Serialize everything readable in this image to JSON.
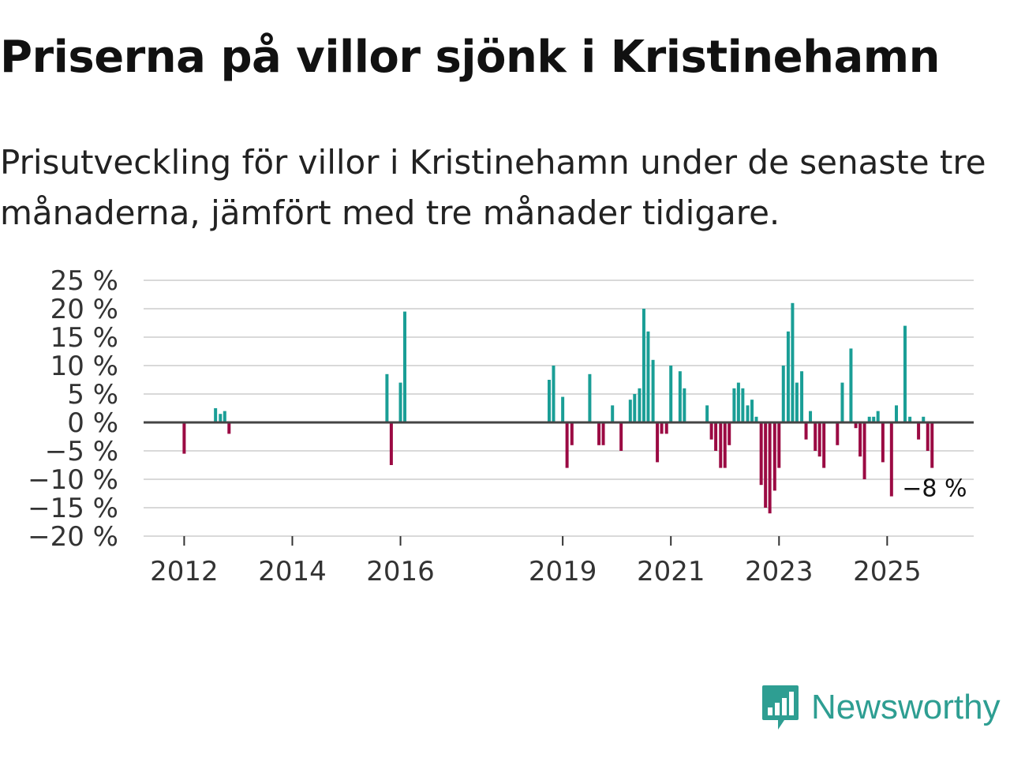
{
  "header": {
    "title": "Priserna på villor sjönk i Kristinehamn",
    "subtitle": "Prisutveckling för villor i Kristinehamn under de senaste tre månaderna, jämfört med tre månader tidigare."
  },
  "brand": {
    "name": "Newsworthy",
    "icon": "newsworthy-logo-icon",
    "color": "#2e9e92"
  },
  "colors": {
    "positive": "#1a9e96",
    "negative": "#9b0a43",
    "grid": "#d9d9d9",
    "zero": "#444444"
  },
  "chart_data": {
    "type": "bar",
    "title": "Priserna på villor sjönk i Kristinehamn",
    "xlabel": "",
    "ylabel": "",
    "ylim": [
      -20,
      25
    ],
    "xlim": [
      2011.25,
      2026.6
    ],
    "yticks": [
      25,
      20,
      15,
      10,
      5,
      0,
      -5,
      -10,
      -15,
      -20
    ],
    "ytick_labels": [
      "25 %",
      "20 %",
      "15 %",
      "10 %",
      "5 %",
      "0 %",
      "−5 %",
      "−10 %",
      "−15 %",
      "−20 %"
    ],
    "xticks": [
      2012,
      2014,
      2016,
      2019,
      2021,
      2023,
      2025
    ],
    "xtick_labels": [
      "2012",
      "2014",
      "2016",
      "2019",
      "2021",
      "2023",
      "2025"
    ],
    "grid": true,
    "annotation": {
      "text": "−8 %",
      "x": 2025.83,
      "y": -8
    },
    "points": [
      {
        "x": 2012.0,
        "y": -5.5
      },
      {
        "x": 2012.58,
        "y": 2.5
      },
      {
        "x": 2012.67,
        "y": 1.5
      },
      {
        "x": 2012.75,
        "y": 2.0
      },
      {
        "x": 2012.83,
        "y": -2.0
      },
      {
        "x": 2015.75,
        "y": 8.5
      },
      {
        "x": 2015.83,
        "y": -7.5
      },
      {
        "x": 2016.0,
        "y": 7.0
      },
      {
        "x": 2016.08,
        "y": 19.5
      },
      {
        "x": 2018.75,
        "y": 7.5
      },
      {
        "x": 2018.83,
        "y": 10.0
      },
      {
        "x": 2019.0,
        "y": 4.5
      },
      {
        "x": 2019.08,
        "y": -8.0
      },
      {
        "x": 2019.17,
        "y": -4.0
      },
      {
        "x": 2019.5,
        "y": 8.5
      },
      {
        "x": 2019.67,
        "y": -4.0
      },
      {
        "x": 2019.75,
        "y": -4.0
      },
      {
        "x": 2019.92,
        "y": 3.0
      },
      {
        "x": 2020.08,
        "y": -5.0
      },
      {
        "x": 2020.25,
        "y": 4.0
      },
      {
        "x": 2020.33,
        "y": 5.0
      },
      {
        "x": 2020.42,
        "y": 6.0
      },
      {
        "x": 2020.5,
        "y": 20.0
      },
      {
        "x": 2020.58,
        "y": 16.0
      },
      {
        "x": 2020.67,
        "y": 11.0
      },
      {
        "x": 2020.75,
        "y": -7.0
      },
      {
        "x": 2020.83,
        "y": -2.0
      },
      {
        "x": 2020.92,
        "y": -2.0
      },
      {
        "x": 2021.0,
        "y": 10.0
      },
      {
        "x": 2021.17,
        "y": 9.0
      },
      {
        "x": 2021.25,
        "y": 6.0
      },
      {
        "x": 2021.67,
        "y": 3.0
      },
      {
        "x": 2021.75,
        "y": -3.0
      },
      {
        "x": 2021.83,
        "y": -5.0
      },
      {
        "x": 2021.92,
        "y": -8.0
      },
      {
        "x": 2022.0,
        "y": -8.0
      },
      {
        "x": 2022.08,
        "y": -4.0
      },
      {
        "x": 2022.17,
        "y": 6.0
      },
      {
        "x": 2022.25,
        "y": 7.0
      },
      {
        "x": 2022.33,
        "y": 6.0
      },
      {
        "x": 2022.42,
        "y": 3.0
      },
      {
        "x": 2022.5,
        "y": 4.0
      },
      {
        "x": 2022.58,
        "y": 1.0
      },
      {
        "x": 2022.67,
        "y": -11.0
      },
      {
        "x": 2022.75,
        "y": -15.0
      },
      {
        "x": 2022.83,
        "y": -16.0
      },
      {
        "x": 2022.92,
        "y": -12.0
      },
      {
        "x": 2023.0,
        "y": -8.0
      },
      {
        "x": 2023.08,
        "y": 10.0
      },
      {
        "x": 2023.17,
        "y": 16.0
      },
      {
        "x": 2023.25,
        "y": 21.0
      },
      {
        "x": 2023.33,
        "y": 7.0
      },
      {
        "x": 2023.42,
        "y": 9.0
      },
      {
        "x": 2023.5,
        "y": -3.0
      },
      {
        "x": 2023.58,
        "y": 2.0
      },
      {
        "x": 2023.67,
        "y": -5.0
      },
      {
        "x": 2023.75,
        "y": -6.0
      },
      {
        "x": 2023.83,
        "y": -8.0
      },
      {
        "x": 2024.08,
        "y": -4.0
      },
      {
        "x": 2024.17,
        "y": 7.0
      },
      {
        "x": 2024.33,
        "y": 13.0
      },
      {
        "x": 2024.42,
        "y": -1.0
      },
      {
        "x": 2024.5,
        "y": -6.0
      },
      {
        "x": 2024.58,
        "y": -10.0
      },
      {
        "x": 2024.67,
        "y": 1.0
      },
      {
        "x": 2024.75,
        "y": 1.0
      },
      {
        "x": 2024.83,
        "y": 2.0
      },
      {
        "x": 2024.92,
        "y": -7.0
      },
      {
        "x": 2025.08,
        "y": -13.0
      },
      {
        "x": 2025.17,
        "y": 3.0
      },
      {
        "x": 2025.33,
        "y": 17.0
      },
      {
        "x": 2025.42,
        "y": 1.0
      },
      {
        "x": 2025.58,
        "y": -3.0
      },
      {
        "x": 2025.67,
        "y": 1.0
      },
      {
        "x": 2025.75,
        "y": -5.0
      },
      {
        "x": 2025.83,
        "y": -8.0
      }
    ]
  }
}
